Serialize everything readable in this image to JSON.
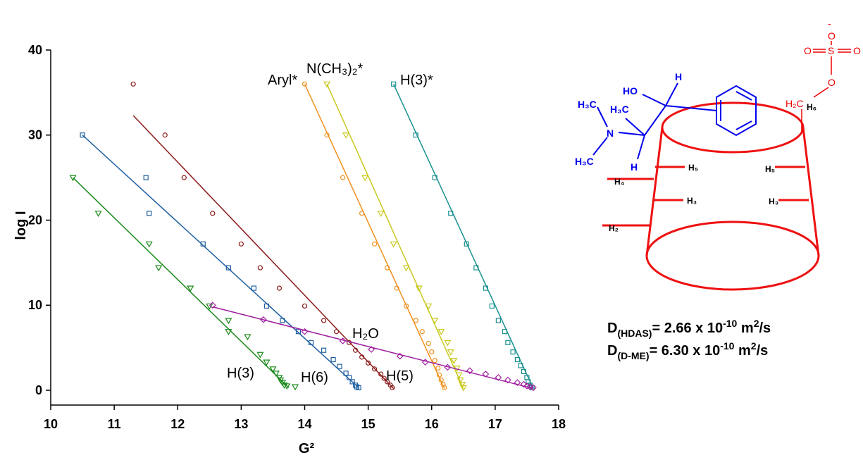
{
  "chart_data": {
    "type": "scatter",
    "x_label": "G²",
    "y_label": "log I",
    "xlim": [
      10,
      18
    ],
    "ylim": [
      -1.74,
      40
    ],
    "xticks": [
      10,
      11,
      12,
      13,
      14,
      15,
      16,
      17,
      18
    ],
    "yticks": [
      0,
      10,
      20,
      30,
      40
    ],
    "series": [
      {
        "name": "H(3)",
        "color": "#1a8a1a",
        "marker": "triangle-down",
        "x": [
          10.35,
          10.75,
          11.55,
          11.7,
          12.2,
          12.5,
          12.8,
          12.8,
          13.1,
          13.3,
          13.4,
          13.5,
          13.55,
          13.6,
          13.62,
          13.65,
          13.68,
          13.72,
          13.85
        ],
        "values": [
          25,
          20.8,
          17.2,
          14.4,
          12,
          9.9,
          8.2,
          6.9,
          6.3,
          4.2,
          3.3,
          2.5,
          2.0,
          1.5,
          1.2,
          0.9,
          0.6,
          0.5,
          0.4
        ],
        "fit": {
          "x": [
            10.35,
            13.75
          ],
          "y": [
            25,
            0.3
          ]
        }
      },
      {
        "name": "H(6)",
        "color": "#1f5fa0",
        "marker": "square",
        "x": [
          10.5,
          11.5,
          11.55,
          12.4,
          12.8,
          13.2,
          13.4,
          13.65,
          13.9,
          14.1,
          14.3,
          14.45,
          14.55,
          14.65,
          14.7,
          14.75,
          14.8,
          14.82,
          14.85
        ],
        "values": [
          30,
          25,
          20.8,
          17.2,
          14.4,
          12,
          9.9,
          8.2,
          6.9,
          5.6,
          4.7,
          3.6,
          2.8,
          2.0,
          1.5,
          1.0,
          0.6,
          0.4,
          0.3
        ],
        "fit": {
          "x": [
            10.5,
            14.85
          ],
          "y": [
            30,
            0.3
          ]
        }
      },
      {
        "name": "H(5)",
        "color": "#8b1a1a",
        "marker": "circle",
        "x": [
          11.3,
          11.8,
          12.1,
          12.55,
          13.0,
          13.3,
          13.6,
          14.0,
          14.3,
          14.5,
          14.7,
          14.8,
          14.9,
          15.0,
          15.1,
          15.2,
          15.25,
          15.3,
          15.35,
          15.38
        ],
        "values": [
          36,
          30,
          25,
          20.8,
          17.2,
          14.4,
          12,
          9.9,
          8.2,
          6.9,
          5.6,
          4.7,
          3.9,
          3.2,
          2.5,
          1.9,
          1.4,
          1.0,
          0.6,
          0.3
        ],
        "fit": {
          "x": [
            11.3,
            15.4
          ],
          "y": [
            32.3,
            0.2
          ]
        }
      },
      {
        "name": "Aryl*",
        "color": "#f0901e",
        "marker": "circle",
        "x": [
          14.0,
          14.35,
          14.6,
          14.9,
          15.1,
          15.3,
          15.45,
          15.6,
          15.75,
          15.85,
          15.95,
          16.0,
          16.05,
          16.1,
          16.12,
          16.15,
          16.18,
          16.2
        ],
        "values": [
          36,
          30,
          25,
          20.8,
          17.2,
          14.4,
          12,
          9.9,
          8.2,
          6.9,
          5.5,
          4.5,
          3.5,
          2.6,
          1.8,
          1.2,
          0.7,
          0.3
        ],
        "fit": {
          "x": [
            14.0,
            16.2
          ],
          "y": [
            36,
            0.2
          ]
        }
      },
      {
        "name": "N(CH₃)₂*",
        "color": "#c8c81e",
        "marker": "triangle-down",
        "x": [
          14.35,
          14.65,
          14.95,
          15.2,
          15.4,
          15.6,
          15.8,
          15.95,
          16.05,
          16.15,
          16.25,
          16.3,
          16.35,
          16.4,
          16.43,
          16.45,
          16.48,
          16.5
        ],
        "values": [
          36,
          30,
          25,
          20.8,
          17.2,
          14.4,
          12,
          9.9,
          8.2,
          6.9,
          5.6,
          4.5,
          3.5,
          2.6,
          1.8,
          1.2,
          0.7,
          0.3
        ],
        "fit": {
          "x": [
            14.35,
            16.5
          ],
          "y": [
            36,
            0.2
          ]
        }
      },
      {
        "name": "H(3)*",
        "color": "#1a9090",
        "marker": "square",
        "x": [
          15.4,
          15.75,
          16.05,
          16.3,
          16.55,
          16.7,
          16.85,
          16.95,
          17.05,
          17.15,
          17.2,
          17.28,
          17.35,
          17.4,
          17.45,
          17.5,
          17.52,
          17.55,
          17.58
        ],
        "values": [
          36,
          30,
          25,
          20.8,
          17.2,
          14.4,
          12,
          9.9,
          8.2,
          6.9,
          5.6,
          4.5,
          3.6,
          2.9,
          2.2,
          1.5,
          1.0,
          0.6,
          0.3
        ],
        "fit": {
          "x": [
            15.4,
            17.6
          ],
          "y": [
            36,
            0.2
          ]
        }
      },
      {
        "name": "H₂O",
        "color": "#a020a0",
        "marker": "diamond",
        "x": [
          12.55,
          13.35,
          14.0,
          14.6,
          15.05,
          15.5,
          15.9,
          16.25,
          16.6,
          16.85,
          17.05,
          17.2,
          17.35,
          17.45,
          17.5,
          17.55,
          17.6
        ],
        "values": [
          10,
          8.3,
          6.9,
          5.8,
          4.8,
          4.0,
          3.3,
          2.7,
          2.3,
          1.9,
          1.5,
          1.2,
          0.9,
          0.7,
          0.5,
          0.4,
          0.3
        ],
        "fit": {
          "x": [
            12.55,
            17.6
          ],
          "y": [
            9.8,
            0.2
          ]
        }
      }
    ]
  },
  "diagram": {
    "atoms": [
      "H₃C",
      "H₃C",
      "N",
      "H₃C",
      "HO",
      "H",
      "H",
      "-",
      "O",
      "S",
      "O",
      "O",
      "O",
      "H₂C",
      "H₆"
    ],
    "ring_labels": [
      "H₅",
      "H₅",
      "H₄",
      "H₃",
      "H₃",
      "H₂"
    ],
    "diffusion": [
      {
        "symbol": "D",
        "subscript": "(HDAS)",
        "text": "= 2.66 x 10",
        "exponent": "-10",
        "unit": " m",
        "unit_exponent": "2",
        "tail": "/s"
      },
      {
        "symbol": "D",
        "subscript": "(D-ME)",
        "text": "= 6.30 x 10",
        "exponent": "-10",
        "unit": " m",
        "unit_exponent": "2",
        "tail": "/s"
      }
    ]
  }
}
